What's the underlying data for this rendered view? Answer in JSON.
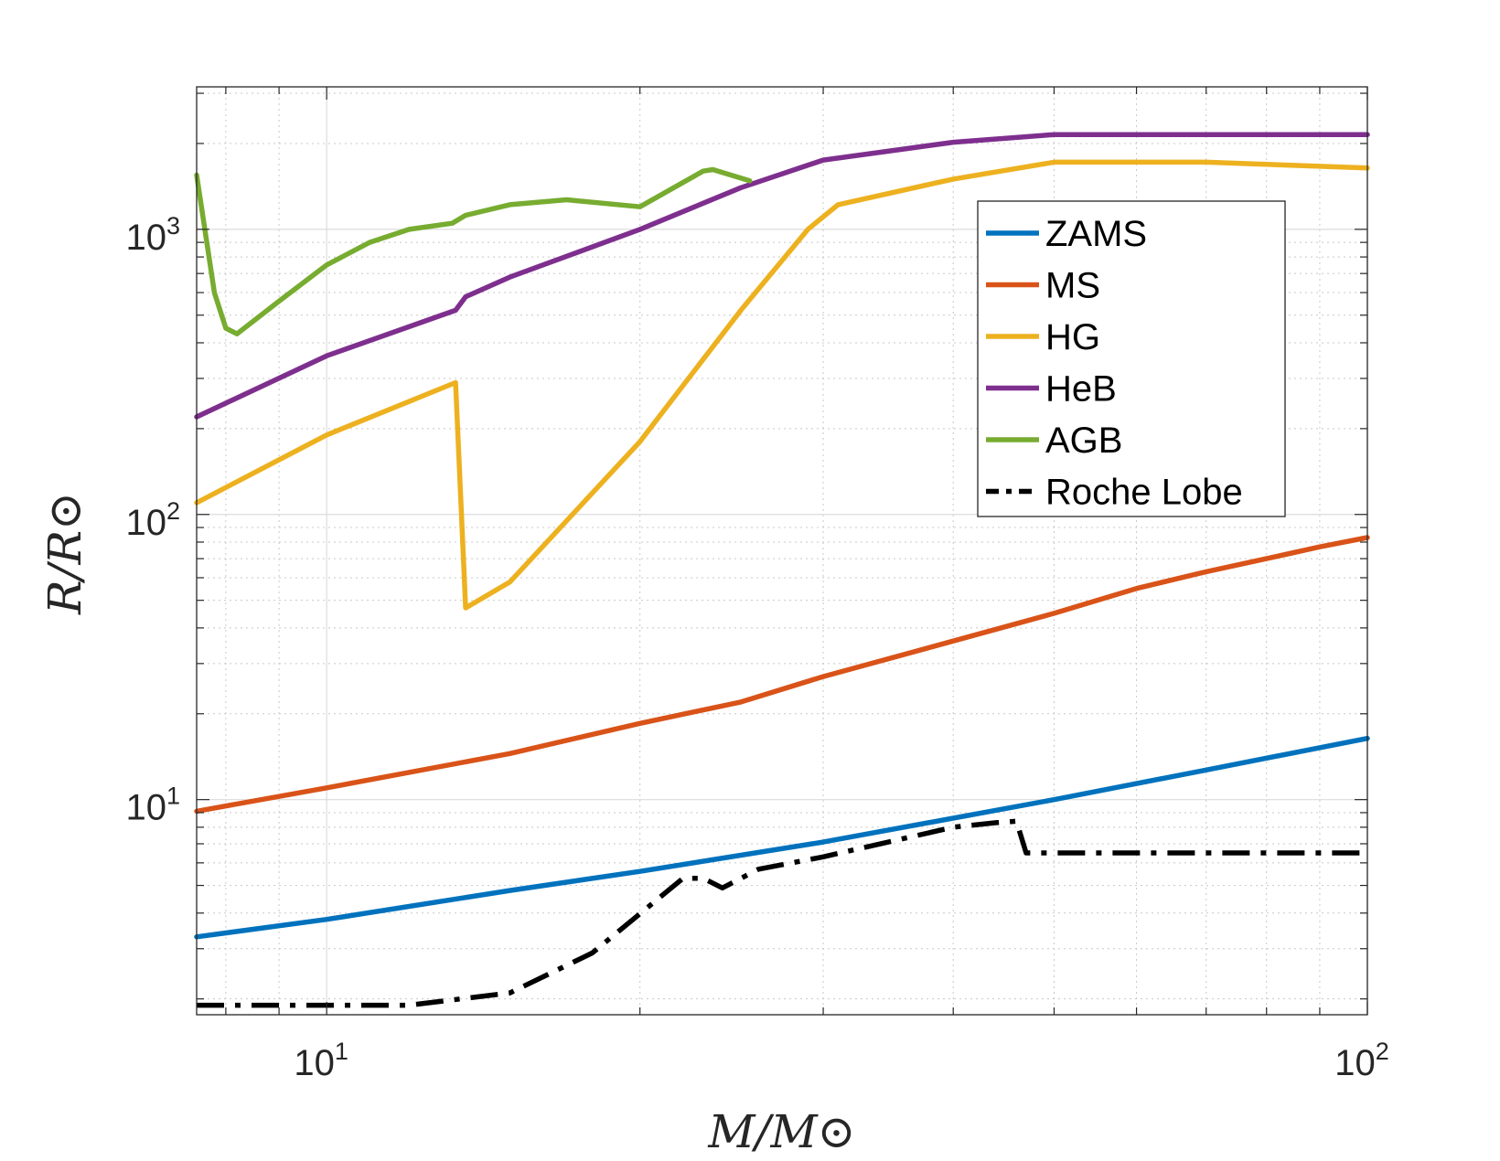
{
  "chart_data": {
    "type": "line",
    "xscale": "log",
    "yscale": "log",
    "xlim": [
      7.5,
      100
    ],
    "ylim": [
      1.76,
      3160
    ],
    "grid": true,
    "minor_grid": true,
    "xlabel": "M/M⊙",
    "ylabel": "R/R⊙",
    "x_ticks": [
      {
        "value": 10,
        "base": "10",
        "exp": "1"
      },
      {
        "value": 100,
        "base": "10",
        "exp": "2"
      }
    ],
    "y_ticks": [
      {
        "value": 10,
        "base": "10",
        "exp": "1"
      },
      {
        "value": 100,
        "base": "10",
        "exp": "2"
      },
      {
        "value": 1000,
        "base": "10",
        "exp": "3"
      }
    ],
    "legend_position": "top-right",
    "series": [
      {
        "name": "ZAMS",
        "color": "#0072BD",
        "dash": "solid",
        "x": [
          7.5,
          10,
          15,
          20,
          30,
          50,
          70,
          100
        ],
        "y": [
          3.3,
          3.8,
          4.8,
          5.6,
          7.1,
          10.0,
          12.7,
          16.4
        ]
      },
      {
        "name": "MS",
        "color": "#D95319",
        "dash": "solid",
        "x": [
          7.5,
          10,
          15,
          20,
          25,
          30,
          40,
          50,
          60,
          70,
          80,
          90,
          100
        ],
        "y": [
          9.1,
          11.0,
          14.5,
          18.5,
          22.0,
          27.0,
          36.0,
          45.0,
          55.0,
          63.0,
          70.0,
          77.0,
          83.0
        ]
      },
      {
        "name": "HG",
        "color": "#EDB120",
        "dash": "solid",
        "x": [
          7.5,
          10,
          13.3,
          13.6,
          15,
          20,
          25,
          29,
          31,
          40,
          50,
          70,
          100
        ],
        "y": [
          110,
          190,
          290,
          47,
          58,
          180,
          520,
          1000,
          1220,
          1500,
          1720,
          1720,
          1640
        ]
      },
      {
        "name": "HeB",
        "color": "#7E2F8E",
        "dash": "solid",
        "x": [
          7.5,
          10,
          13.3,
          13.6,
          15,
          20,
          25,
          30,
          40,
          50,
          100
        ],
        "y": [
          220,
          360,
          520,
          580,
          680,
          1000,
          1400,
          1750,
          2020,
          2150,
          2150
        ]
      },
      {
        "name": "AGB",
        "color": "#77AC30",
        "dash": "solid",
        "x": [
          7.5,
          7.8,
          8.0,
          8.2,
          9.0,
          10,
          11,
          12,
          13.2,
          13.6,
          15,
          17,
          20,
          23,
          23.5,
          25.5
        ],
        "y": [
          1550,
          600,
          450,
          430,
          560,
          750,
          900,
          1000,
          1050,
          1120,
          1220,
          1270,
          1200,
          1600,
          1620,
          1480
        ]
      },
      {
        "name": "Roche Lobe",
        "color": "#000000",
        "dash": "dash-dot",
        "x": [
          7.5,
          10,
          12,
          15,
          18,
          22,
          23,
          24,
          26,
          30,
          40,
          44,
          46,
          47,
          100
        ],
        "y": [
          1.9,
          1.9,
          1.9,
          2.1,
          2.9,
          5.3,
          5.3,
          4.9,
          5.7,
          6.3,
          8.0,
          8.3,
          8.4,
          6.5,
          6.5
        ]
      }
    ]
  }
}
